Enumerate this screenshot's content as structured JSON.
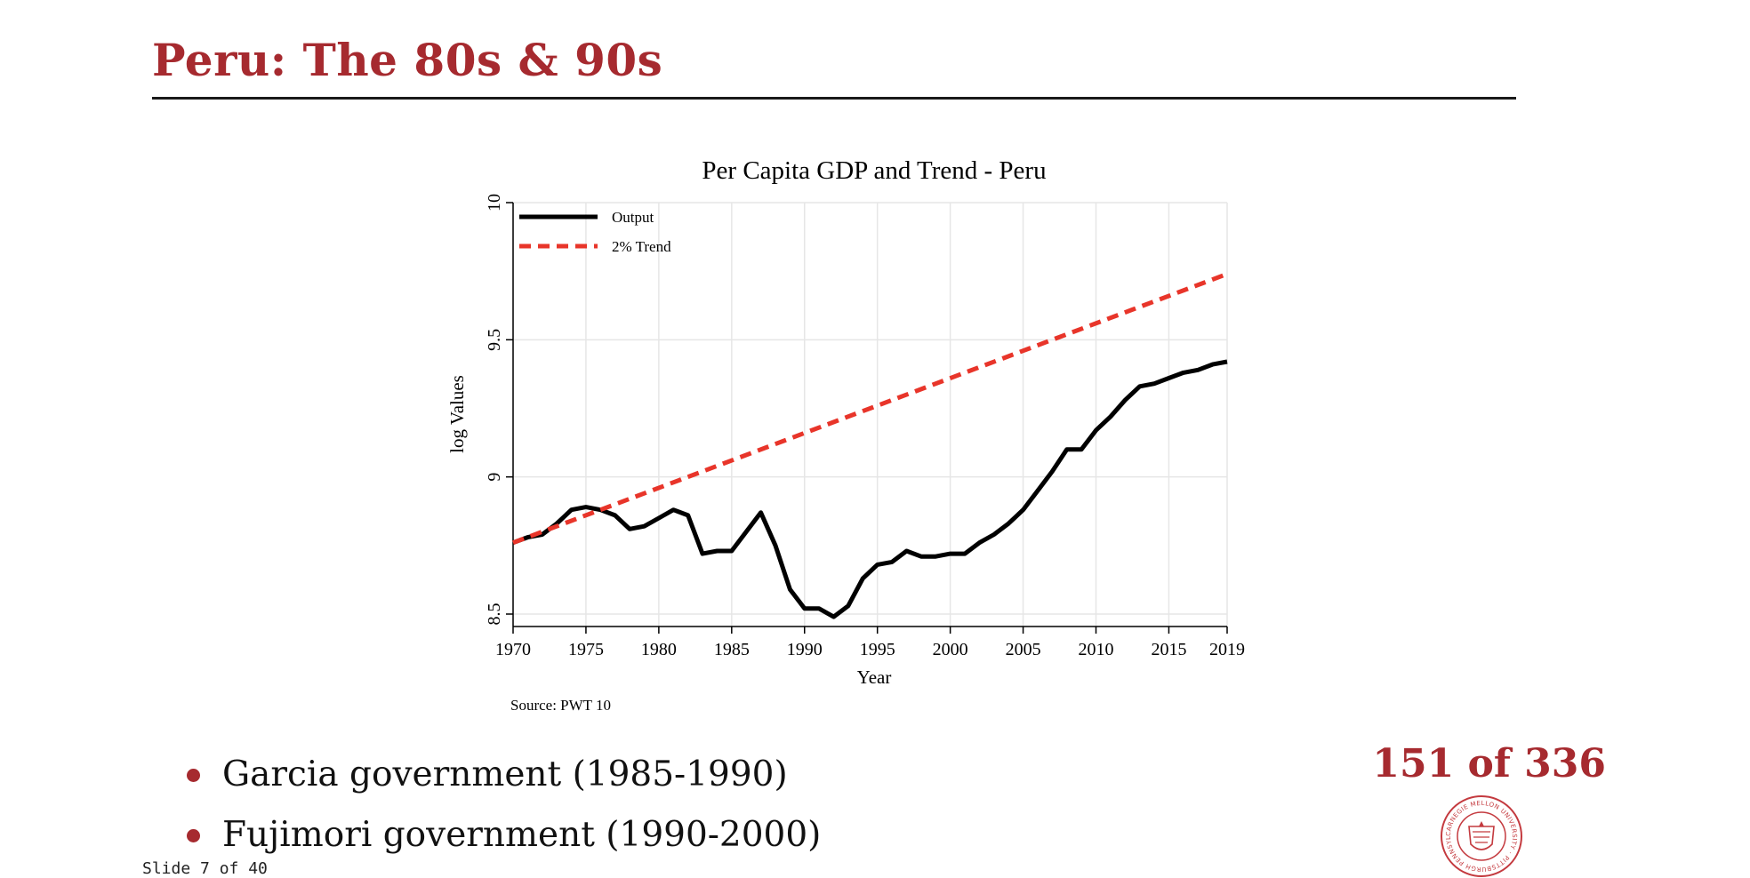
{
  "slide": {
    "title": "Peru: The 80s & 90s",
    "footer": "Slide 7 of 40",
    "page_counter": "151 of 336",
    "seal_text": "CARNEGIE MELLON UNIVERSITY · PITTSBURGH, PENNSYLVANIA 1900",
    "bullets": [
      "Garcia government (1985-1990)",
      "Fujimori government (1990-2000)"
    ]
  },
  "colors": {
    "accent": "#a62a2f",
    "output_line": "#000000",
    "trend_line": "#e8352a",
    "grid": "#e6e6e6"
  },
  "chart_data": {
    "type": "line",
    "title": "Per Capita GDP and Trend - Peru",
    "xlabel": "Year",
    "ylabel": "log Values",
    "source_note": "Source: PWT 10",
    "xlim": [
      1970,
      2019
    ],
    "ylim": [
      8.5,
      10
    ],
    "x_ticks": [
      1970,
      1975,
      1980,
      1985,
      1990,
      1995,
      2000,
      2005,
      2010,
      2015,
      2019
    ],
    "y_ticks": [
      "8.5",
      "9",
      "9.5",
      "10"
    ],
    "grid": true,
    "legend_position": "top-left",
    "series": [
      {
        "name": "Output",
        "style": "solid",
        "x": [
          1970,
          1971,
          1972,
          1973,
          1974,
          1975,
          1976,
          1977,
          1978,
          1979,
          1980,
          1981,
          1982,
          1983,
          1984,
          1985,
          1986,
          1987,
          1988,
          1989,
          1990,
          1991,
          1992,
          1993,
          1994,
          1995,
          1996,
          1997,
          1998,
          1999,
          2000,
          2001,
          2002,
          2003,
          2004,
          2005,
          2006,
          2007,
          2008,
          2009,
          2010,
          2011,
          2012,
          2013,
          2014,
          2015,
          2016,
          2017,
          2018,
          2019
        ],
        "y": [
          8.76,
          8.78,
          8.79,
          8.83,
          8.88,
          8.89,
          8.88,
          8.86,
          8.81,
          8.82,
          8.85,
          8.88,
          8.86,
          8.72,
          8.73,
          8.73,
          8.8,
          8.87,
          8.75,
          8.59,
          8.52,
          8.52,
          8.49,
          8.53,
          8.63,
          8.68,
          8.69,
          8.73,
          8.71,
          8.71,
          8.72,
          8.72,
          8.76,
          8.79,
          8.83,
          8.88,
          8.95,
          9.02,
          9.1,
          9.1,
          9.17,
          9.22,
          9.28,
          9.33,
          9.34,
          9.36,
          9.38,
          9.39,
          9.41,
          9.42
        ]
      },
      {
        "name": "2% Trend",
        "style": "dashed",
        "x": [
          1970,
          2019
        ],
        "y": [
          8.76,
          9.74
        ]
      }
    ]
  }
}
